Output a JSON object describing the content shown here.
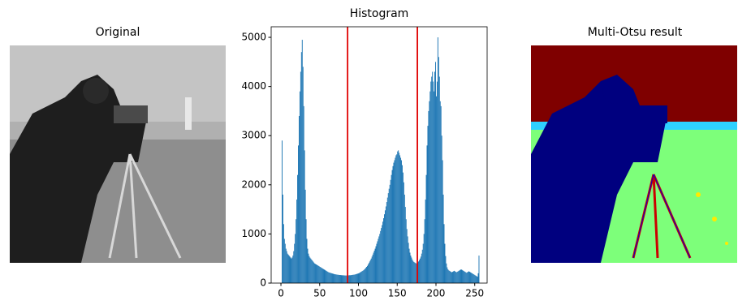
{
  "chart_data": {
    "type": "histogram",
    "title": "Histogram",
    "color": "#1f77b4",
    "bins": [
      0,
      1,
      2,
      3,
      4,
      5,
      6,
      7,
      8,
      9,
      10,
      11,
      12,
      13,
      14,
      15,
      16,
      17,
      18,
      19,
      20,
      21,
      22,
      23,
      24,
      25,
      26,
      27,
      28,
      29,
      30,
      31,
      32,
      33,
      34,
      35,
      36,
      37,
      38,
      39,
      40,
      41,
      42,
      43,
      44,
      45,
      46,
      47,
      48,
      49,
      50,
      51,
      52,
      53,
      54,
      55,
      56,
      57,
      58,
      59,
      60,
      61,
      62,
      63,
      64,
      65,
      66,
      67,
      68,
      69,
      70,
      71,
      72,
      73,
      74,
      75,
      76,
      77,
      78,
      79,
      80,
      81,
      82,
      83,
      84,
      85,
      86,
      87,
      88,
      89,
      90,
      91,
      92,
      93,
      94,
      95,
      96,
      97,
      98,
      99,
      100,
      101,
      102,
      103,
      104,
      105,
      106,
      107,
      108,
      109,
      110,
      111,
      112,
      113,
      114,
      115,
      116,
      117,
      118,
      119,
      120,
      121,
      122,
      123,
      124,
      125,
      126,
      127,
      128,
      129,
      130,
      131,
      132,
      133,
      134,
      135,
      136,
      137,
      138,
      139,
      140,
      141,
      142,
      143,
      144,
      145,
      146,
      147,
      148,
      149,
      150,
      151,
      152,
      153,
      154,
      155,
      156,
      157,
      158,
      159,
      160,
      161,
      162,
      163,
      164,
      165,
      166,
      167,
      168,
      169,
      170,
      171,
      172,
      173,
      174,
      175,
      176,
      177,
      178,
      179,
      180,
      181,
      182,
      183,
      184,
      185,
      186,
      187,
      188,
      189,
      190,
      191,
      192,
      193,
      194,
      195,
      196,
      197,
      198,
      199,
      200,
      201,
      202,
      203,
      204,
      205,
      206,
      207,
      208,
      209,
      210,
      211,
      212,
      213,
      214,
      215,
      216,
      217,
      218,
      219,
      220,
      221,
      222,
      223,
      224,
      225,
      226,
      227,
      228,
      229,
      230,
      231,
      232,
      233,
      234,
      235,
      236,
      237,
      238,
      239,
      240,
      241,
      242,
      243,
      244,
      245,
      246,
      247,
      248,
      249,
      250,
      251,
      252,
      253,
      254,
      255,
      256
    ],
    "values": [
      0,
      2900,
      1800,
      1200,
      900,
      800,
      700,
      650,
      600,
      580,
      560,
      540,
      520,
      500,
      520,
      560,
      650,
      800,
      1000,
      1300,
      1700,
      2200,
      2800,
      3400,
      3900,
      4300,
      4700,
      4950,
      4400,
      3600,
      2700,
      1900,
      1300,
      900,
      700,
      600,
      550,
      520,
      500,
      480,
      460,
      440,
      420,
      400,
      390,
      380,
      370,
      360,
      350,
      340,
      330,
      320,
      310,
      300,
      290,
      280,
      270,
      260,
      250,
      240,
      230,
      220,
      215,
      210,
      205,
      200,
      195,
      190,
      185,
      180,
      178,
      175,
      172,
      170,
      168,
      165,
      165,
      163,
      160,
      160,
      158,
      158,
      155,
      155,
      155,
      155,
      155,
      158,
      160,
      160,
      162,
      165,
      168,
      170,
      172,
      175,
      180,
      185,
      190,
      195,
      200,
      210,
      220,
      230,
      240,
      250,
      260,
      275,
      290,
      310,
      330,
      350,
      380,
      410,
      440,
      470,
      500,
      540,
      580,
      620,
      660,
      700,
      750,
      800,
      850,
      900,
      950,
      1000,
      1060,
      1120,
      1180,
      1250,
      1320,
      1400,
      1480,
      1560,
      1650,
      1740,
      1830,
      1920,
      2000,
      2100,
      2200,
      2300,
      2380,
      2450,
      2500,
      2550,
      2600,
      2620,
      2680,
      2700,
      2650,
      2600,
      2550,
      2500,
      2400,
      2250,
      2050,
      1800,
      1550,
      1300,
      1100,
      950,
      820,
      700,
      620,
      560,
      520,
      480,
      450,
      430,
      420,
      410,
      400,
      410,
      420,
      440,
      470,
      500,
      540,
      600,
      680,
      800,
      1000,
      1300,
      1700,
      2200,
      2800,
      3200,
      3500,
      3700,
      3900,
      4100,
      4200,
      4300,
      4100,
      3900,
      4300,
      4500,
      3800,
      4100,
      5000,
      4600,
      4200,
      3700,
      3600,
      3000,
      2500,
      1800,
      1200,
      800,
      550,
      400,
      320,
      280,
      260,
      250,
      240,
      230,
      220,
      230,
      240,
      250,
      240,
      230,
      220,
      230,
      240,
      250,
      260,
      270,
      280,
      270,
      260,
      250,
      240,
      230,
      220,
      210,
      220,
      230,
      240,
      230,
      220,
      210,
      200,
      190,
      180,
      170,
      160,
      150,
      140,
      130,
      200,
      560
    ],
    "thresholds": [
      86,
      176
    ],
    "threshold_color": "#e00000",
    "xlim": [
      -12.6,
      266
    ],
    "ylim": [
      0,
      5215
    ],
    "xticks": [
      0,
      50,
      100,
      150,
      200,
      250
    ],
    "yticks": [
      0,
      1000,
      2000,
      3000,
      4000,
      5000
    ]
  },
  "panels": {
    "original_title": "Original",
    "result_title": "Multi-Otsu result"
  }
}
